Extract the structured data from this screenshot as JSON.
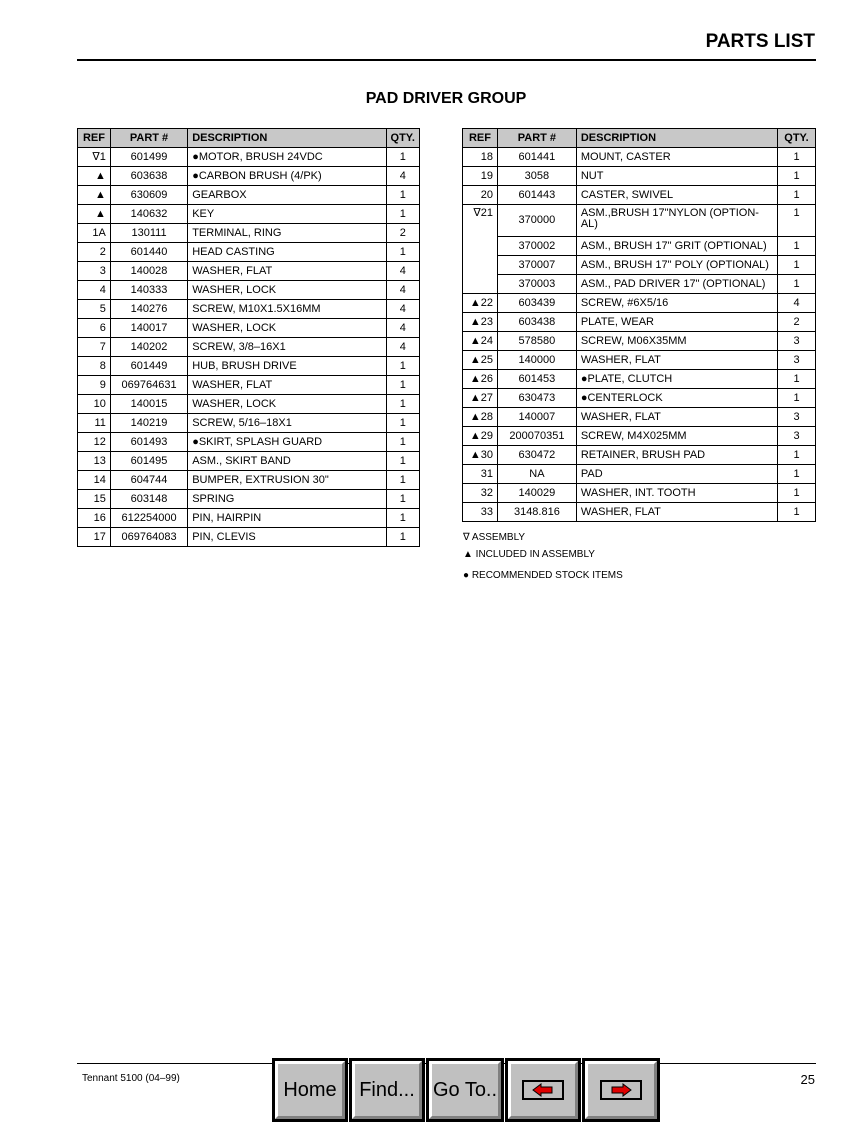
{
  "header": {
    "title": "PARTS LIST"
  },
  "section_title": "PAD DRIVER GROUP",
  "columns": {
    "ref": "REF",
    "part": "PART #",
    "desc": "DESCRIPTION",
    "qty": "QTY."
  },
  "left_rows": [
    {
      "ref": "∇1",
      "part": "601499",
      "desc": "●MOTOR, BRUSH 24VDC",
      "qty": "1"
    },
    {
      "ref": "▲",
      "part": "603638",
      "desc": "●CARBON BRUSH (4/PK)",
      "qty": "4"
    },
    {
      "ref": "▲",
      "part": "630609",
      "desc": "GEARBOX",
      "qty": "1"
    },
    {
      "ref": "▲",
      "part": "140632",
      "desc": "KEY",
      "qty": "1"
    },
    {
      "ref": "1A",
      "part": "130111",
      "desc": "TERMINAL, RING",
      "qty": "2"
    },
    {
      "ref": "2",
      "part": "601440",
      "desc": "HEAD CASTING",
      "qty": "1"
    },
    {
      "ref": "3",
      "part": "140028",
      "desc": "WASHER, FLAT",
      "qty": "4"
    },
    {
      "ref": "4",
      "part": "140333",
      "desc": "WASHER, LOCK",
      "qty": "4"
    },
    {
      "ref": "5",
      "part": "140276",
      "desc": "SCREW, M10X1.5X16MM",
      "qty": "4"
    },
    {
      "ref": "6",
      "part": "140017",
      "desc": "WASHER, LOCK",
      "qty": "4"
    },
    {
      "ref": "7",
      "part": "140202",
      "desc": "SCREW, 3/8–16X1",
      "qty": "4"
    },
    {
      "ref": "8",
      "part": "601449",
      "desc": "HUB, BRUSH DRIVE",
      "qty": "1"
    },
    {
      "ref": "9",
      "part": "069764631",
      "desc": "WASHER, FLAT",
      "qty": "1"
    },
    {
      "ref": "10",
      "part": "140015",
      "desc": "WASHER, LOCK",
      "qty": "1"
    },
    {
      "ref": "11",
      "part": "140219",
      "desc": "SCREW, 5/16–18X1",
      "qty": "1"
    },
    {
      "ref": "12",
      "part": "601493",
      "desc": "●SKIRT, SPLASH GUARD",
      "qty": "1"
    },
    {
      "ref": "13",
      "part": "601495",
      "desc": "ASM., SKIRT BAND",
      "qty": "1"
    },
    {
      "ref": "14",
      "part": "604744",
      "desc": "BUMPER, EXTRUSION 30\"",
      "qty": "1"
    },
    {
      "ref": "15",
      "part": "603148",
      "desc": "SPRING",
      "qty": "1"
    },
    {
      "ref": "16",
      "part": "612254000",
      "desc": "PIN, HAIRPIN",
      "qty": "1"
    },
    {
      "ref": "17",
      "part": "069764083",
      "desc": "PIN, CLEVIS",
      "qty": "1"
    }
  ],
  "right_rows": [
    {
      "ref": "18",
      "part": "601441",
      "desc": "MOUNT, CASTER",
      "qty": "1"
    },
    {
      "ref": "19",
      "part": "3058",
      "desc": "NUT",
      "qty": "1"
    },
    {
      "ref": "20",
      "part": "601443",
      "desc": "CASTER, SWIVEL",
      "qty": "1"
    },
    {
      "ref": "∇21",
      "part": "370000",
      "desc": "ASM.,BRUSH 17\"NYLON (OPTION-AL)",
      "qty": "1",
      "span": 4
    },
    {
      "part": "370002",
      "desc": "ASM., BRUSH 17\" GRIT (OPTIONAL)",
      "qty": "1"
    },
    {
      "part": "370007",
      "desc": "ASM., BRUSH 17\" POLY (OPTIONAL)",
      "qty": "1"
    },
    {
      "part": "370003",
      "desc": "ASM., PAD DRIVER 17\" (OPTIONAL)",
      "qty": "1"
    },
    {
      "ref": "▲22",
      "part": "603439",
      "desc": "SCREW, #6X5/16",
      "qty": "4"
    },
    {
      "ref": "▲23",
      "part": "603438",
      "desc": "PLATE, WEAR",
      "qty": "2"
    },
    {
      "ref": "▲24",
      "part": "578580",
      "desc": "SCREW, M06X35MM",
      "qty": "3"
    },
    {
      "ref": "▲25",
      "part": "140000",
      "desc": "WASHER, FLAT",
      "qty": "3"
    },
    {
      "ref": "▲26",
      "part": "601453",
      "desc": "●PLATE, CLUTCH",
      "qty": "1"
    },
    {
      "ref": "▲27",
      "part": "630473",
      "desc": "●CENTERLOCK",
      "qty": "1"
    },
    {
      "ref": "▲28",
      "part": "140007",
      "desc": "WASHER, FLAT",
      "qty": "3"
    },
    {
      "ref": "▲29",
      "part": "200070351",
      "desc": "SCREW, M4X025MM",
      "qty": "3"
    },
    {
      "ref": "▲30",
      "part": "630472",
      "desc": "RETAINER, BRUSH PAD",
      "qty": "1"
    },
    {
      "ref": "31",
      "part": "NA",
      "desc": "PAD",
      "qty": "1"
    },
    {
      "ref": "32",
      "part": "140029",
      "desc": "WASHER, INT. TOOTH",
      "qty": "1"
    },
    {
      "ref": "33",
      "part": "3148.816",
      "desc": "WASHER, FLAT",
      "qty": "1"
    }
  ],
  "legend": [
    "∇ ASSEMBLY",
    "▲ INCLUDED IN ASSEMBLY",
    "● RECOMMENDED STOCK ITEMS"
  ],
  "footer": {
    "doc": "Tennant 5100 (04–99)",
    "page": "25"
  },
  "nav": {
    "home": "Home",
    "find": "Find...",
    "goto": "Go To..",
    "prev_icon": "left-arrow-icon",
    "next_icon": "right-arrow-icon"
  }
}
